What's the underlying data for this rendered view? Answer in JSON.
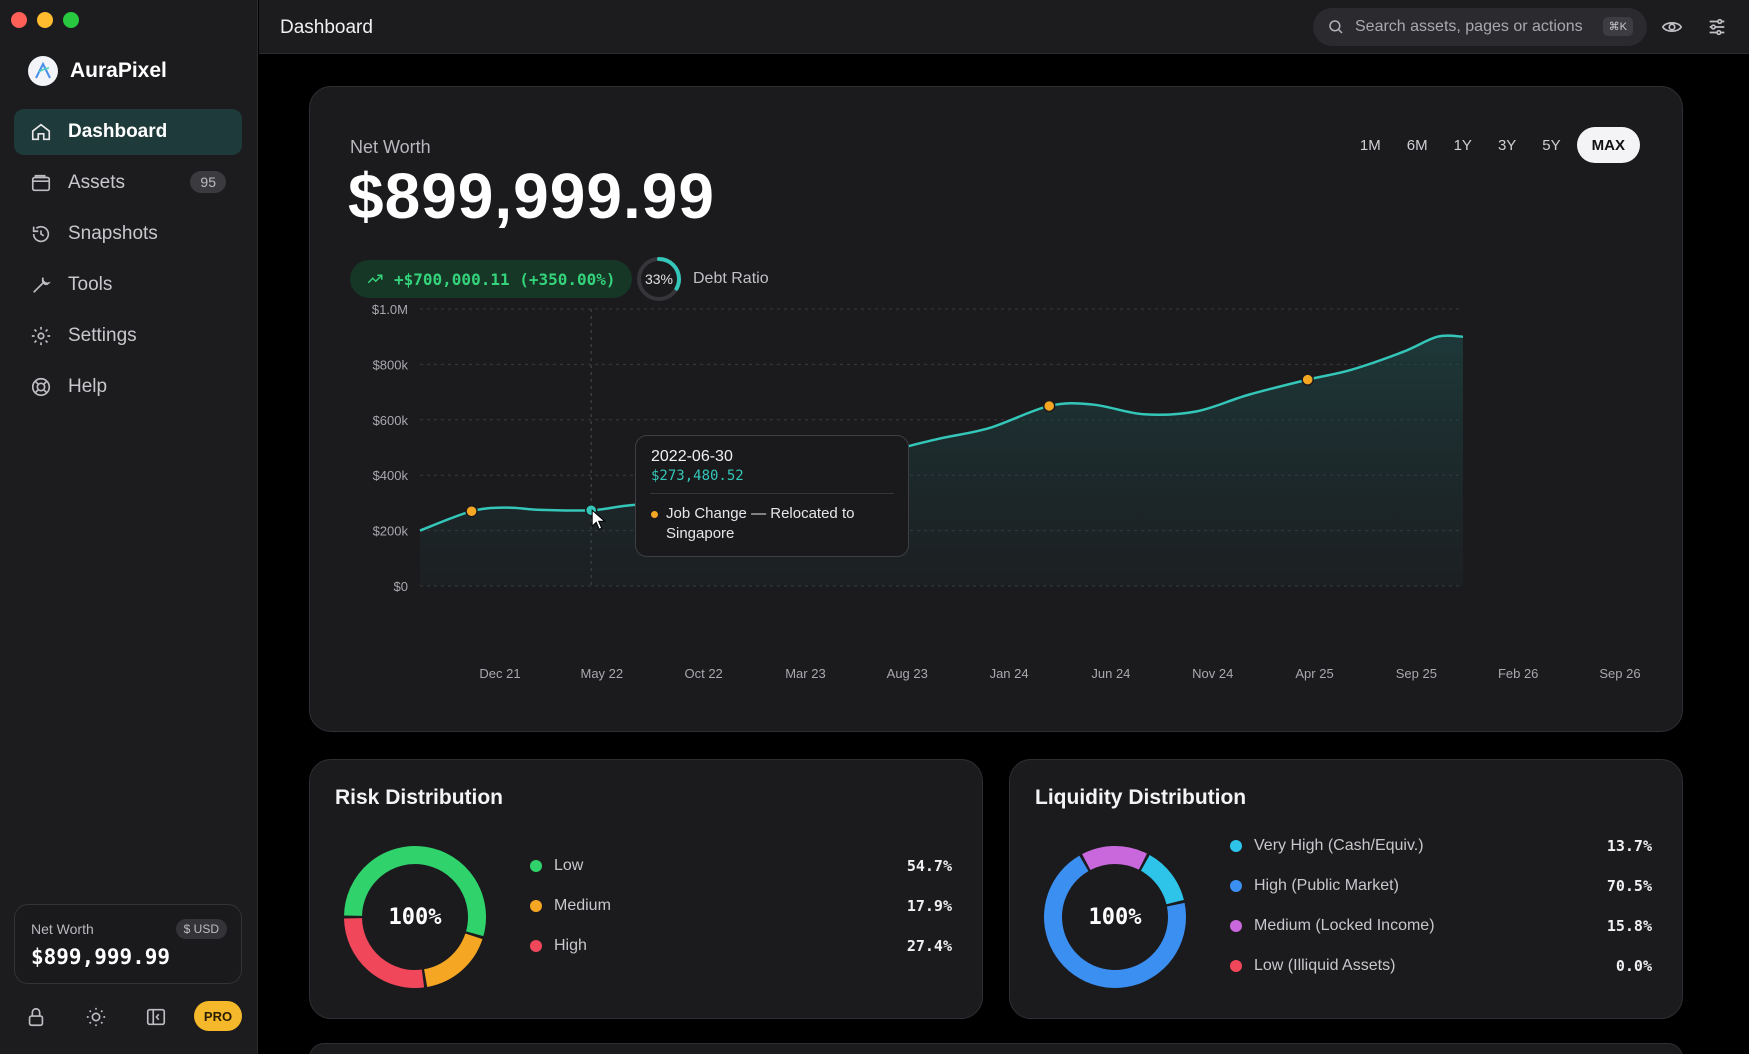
{
  "app": {
    "name": "AuraPixel"
  },
  "topbar": {
    "title": "Dashboard",
    "search_placeholder": "Search assets, pages or actions",
    "search_shortcut": "⌘K"
  },
  "sidebar": {
    "items": [
      {
        "label": "Dashboard",
        "icon": "home-icon",
        "active": true
      },
      {
        "label": "Assets",
        "icon": "wallet-icon",
        "badge": "95"
      },
      {
        "label": "Snapshots",
        "icon": "history-icon"
      },
      {
        "label": "Tools",
        "icon": "wrench-icon"
      },
      {
        "label": "Settings",
        "icon": "gear-icon"
      },
      {
        "label": "Help",
        "icon": "lifebuoy-icon"
      }
    ],
    "net_worth": {
      "label": "Net Worth",
      "currency": "$ USD",
      "value": "$899,999.99"
    },
    "pro_badge": "PRO"
  },
  "net_worth_card": {
    "label": "Net Worth",
    "value": "$899,999.99",
    "change": "+$700,000.11 (+350.00%)",
    "debt_ratio_percent": 33,
    "debt_ratio_text": "33%",
    "debt_ratio_label": "Debt Ratio",
    "ranges": [
      "1M",
      "6M",
      "1Y",
      "3Y",
      "5Y",
      "MAX"
    ],
    "active_range": "MAX"
  },
  "chart_data": {
    "type": "area",
    "title": "",
    "xlabel": "",
    "ylabel": "",
    "x_tick_labels": [
      "Dec 21",
      "May 22",
      "Oct 22",
      "Mar 23",
      "Aug 23",
      "Jan 24",
      "Jun 24",
      "Nov 24",
      "Apr 25",
      "Sep 25",
      "Feb 26",
      "Sep 26"
    ],
    "y_tick_labels": [
      "$0",
      "$200k",
      "$400k",
      "$600k",
      "$800k",
      "$1.0M"
    ],
    "ylim": [
      0,
      1000000
    ],
    "grid": true,
    "line_color": "#34c6b8",
    "x": [
      "2021-09-01",
      "2021-12-01",
      "2022-02-01",
      "2022-04-01",
      "2022-06-30",
      "2022-09-01",
      "2022-12-01",
      "2023-03-15",
      "2023-06-01",
      "2023-09-01",
      "2023-12-01",
      "2024-03-01",
      "2024-06-01",
      "2024-09-15",
      "2024-12-01",
      "2025-03-01",
      "2025-06-01",
      "2025-09-01",
      "2025-12-15",
      "2026-03-01",
      "2026-06-01",
      "2026-08-01",
      "2026-09-15"
    ],
    "values": [
      200000,
      270000,
      283000,
      275000,
      273480,
      290000,
      305000,
      312000,
      335000,
      400000,
      480000,
      530000,
      570000,
      650000,
      655000,
      620000,
      630000,
      690000,
      745000,
      780000,
      845000,
      900000,
      900000
    ],
    "events": [
      {
        "date": "2021-12-01",
        "value": 270000
      },
      {
        "date": "2022-06-30",
        "value": 273480,
        "highlight": true
      },
      {
        "date": "2023-03-15",
        "value": 312000
      },
      {
        "date": "2024-09-15",
        "value": 650000
      },
      {
        "date": "2025-12-15",
        "value": 745000
      }
    ],
    "tooltip": {
      "date": "2022-06-30",
      "value": "$273,480.52",
      "event": "Job Change — Relocated to Singapore"
    }
  },
  "risk_distribution": {
    "title": "Risk Distribution",
    "center_label": "100%",
    "items": [
      {
        "label": "Low",
        "pct": "54.7%",
        "value": 54.7,
        "color": "#2fd26b"
      },
      {
        "label": "Medium",
        "pct": "17.9%",
        "value": 17.9,
        "color": "#f5a623"
      },
      {
        "label": "High",
        "pct": "27.4%",
        "value": 27.4,
        "color": "#f0475a"
      }
    ]
  },
  "liquidity_distribution": {
    "title": "Liquidity Distribution",
    "center_label": "100%",
    "items": [
      {
        "label": "Very High (Cash/Equiv.)",
        "pct": "13.7%",
        "value": 13.7,
        "color": "#2ec4ea"
      },
      {
        "label": "High (Public Market)",
        "pct": "70.5%",
        "value": 70.5,
        "color": "#3a8ff0"
      },
      {
        "label": "Medium (Locked Income)",
        "pct": "15.8%",
        "value": 15.8,
        "color": "#c868dc"
      },
      {
        "label": "Low (Illiquid Assets)",
        "pct": "0.0%",
        "value": 0.0,
        "color": "#f0475a"
      }
    ]
  }
}
